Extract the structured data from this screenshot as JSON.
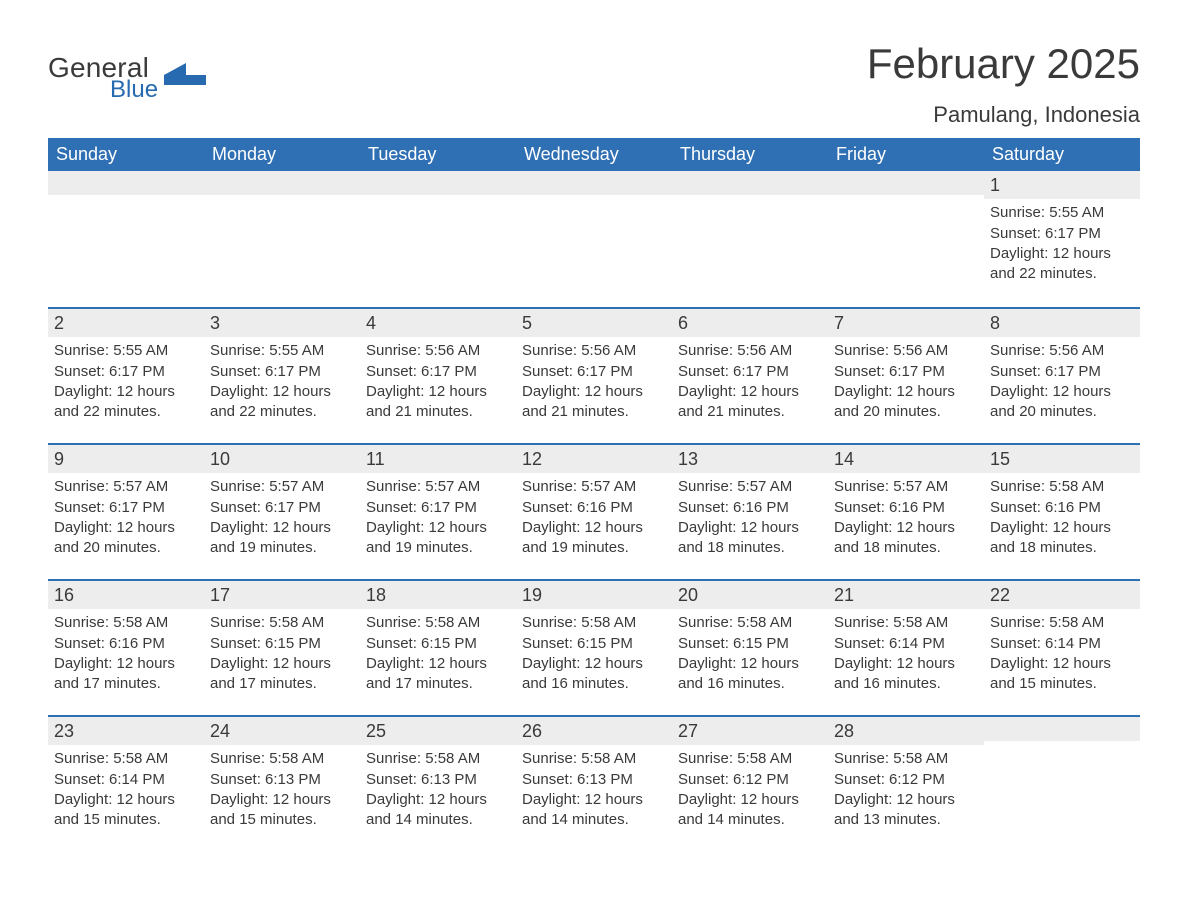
{
  "logo": {
    "text1": "General",
    "text2": "Blue",
    "accent_color": "#276aaf"
  },
  "title": "February 2025",
  "location": "Pamulang, Indonesia",
  "header_bg": "#2f6fb4",
  "header_fg": "#ffffff",
  "daynum_bg": "#ededed",
  "divider_color": "#2f6fb4",
  "text_color": "#3a3a3a",
  "background_color": "#ffffff",
  "fonts": {
    "title_size_pt": 32,
    "location_size_pt": 17,
    "header_size_pt": 14,
    "body_size_pt": 11
  },
  "columns": [
    "Sunday",
    "Monday",
    "Tuesday",
    "Wednesday",
    "Thursday",
    "Friday",
    "Saturday"
  ],
  "weeks": [
    [
      null,
      null,
      null,
      null,
      null,
      null,
      {
        "n": "1",
        "sunrise": "Sunrise: 5:55 AM",
        "sunset": "Sunset: 6:17 PM",
        "daylight": "Daylight: 12 hours and 22 minutes."
      }
    ],
    [
      {
        "n": "2",
        "sunrise": "Sunrise: 5:55 AM",
        "sunset": "Sunset: 6:17 PM",
        "daylight": "Daylight: 12 hours and 22 minutes."
      },
      {
        "n": "3",
        "sunrise": "Sunrise: 5:55 AM",
        "sunset": "Sunset: 6:17 PM",
        "daylight": "Daylight: 12 hours and 22 minutes."
      },
      {
        "n": "4",
        "sunrise": "Sunrise: 5:56 AM",
        "sunset": "Sunset: 6:17 PM",
        "daylight": "Daylight: 12 hours and 21 minutes."
      },
      {
        "n": "5",
        "sunrise": "Sunrise: 5:56 AM",
        "sunset": "Sunset: 6:17 PM",
        "daylight": "Daylight: 12 hours and 21 minutes."
      },
      {
        "n": "6",
        "sunrise": "Sunrise: 5:56 AM",
        "sunset": "Sunset: 6:17 PM",
        "daylight": "Daylight: 12 hours and 21 minutes."
      },
      {
        "n": "7",
        "sunrise": "Sunrise: 5:56 AM",
        "sunset": "Sunset: 6:17 PM",
        "daylight": "Daylight: 12 hours and 20 minutes."
      },
      {
        "n": "8",
        "sunrise": "Sunrise: 5:56 AM",
        "sunset": "Sunset: 6:17 PM",
        "daylight": "Daylight: 12 hours and 20 minutes."
      }
    ],
    [
      {
        "n": "9",
        "sunrise": "Sunrise: 5:57 AM",
        "sunset": "Sunset: 6:17 PM",
        "daylight": "Daylight: 12 hours and 20 minutes."
      },
      {
        "n": "10",
        "sunrise": "Sunrise: 5:57 AM",
        "sunset": "Sunset: 6:17 PM",
        "daylight": "Daylight: 12 hours and 19 minutes."
      },
      {
        "n": "11",
        "sunrise": "Sunrise: 5:57 AM",
        "sunset": "Sunset: 6:17 PM",
        "daylight": "Daylight: 12 hours and 19 minutes."
      },
      {
        "n": "12",
        "sunrise": "Sunrise: 5:57 AM",
        "sunset": "Sunset: 6:16 PM",
        "daylight": "Daylight: 12 hours and 19 minutes."
      },
      {
        "n": "13",
        "sunrise": "Sunrise: 5:57 AM",
        "sunset": "Sunset: 6:16 PM",
        "daylight": "Daylight: 12 hours and 18 minutes."
      },
      {
        "n": "14",
        "sunrise": "Sunrise: 5:57 AM",
        "sunset": "Sunset: 6:16 PM",
        "daylight": "Daylight: 12 hours and 18 minutes."
      },
      {
        "n": "15",
        "sunrise": "Sunrise: 5:58 AM",
        "sunset": "Sunset: 6:16 PM",
        "daylight": "Daylight: 12 hours and 18 minutes."
      }
    ],
    [
      {
        "n": "16",
        "sunrise": "Sunrise: 5:58 AM",
        "sunset": "Sunset: 6:16 PM",
        "daylight": "Daylight: 12 hours and 17 minutes."
      },
      {
        "n": "17",
        "sunrise": "Sunrise: 5:58 AM",
        "sunset": "Sunset: 6:15 PM",
        "daylight": "Daylight: 12 hours and 17 minutes."
      },
      {
        "n": "18",
        "sunrise": "Sunrise: 5:58 AM",
        "sunset": "Sunset: 6:15 PM",
        "daylight": "Daylight: 12 hours and 17 minutes."
      },
      {
        "n": "19",
        "sunrise": "Sunrise: 5:58 AM",
        "sunset": "Sunset: 6:15 PM",
        "daylight": "Daylight: 12 hours and 16 minutes."
      },
      {
        "n": "20",
        "sunrise": "Sunrise: 5:58 AM",
        "sunset": "Sunset: 6:15 PM",
        "daylight": "Daylight: 12 hours and 16 minutes."
      },
      {
        "n": "21",
        "sunrise": "Sunrise: 5:58 AM",
        "sunset": "Sunset: 6:14 PM",
        "daylight": "Daylight: 12 hours and 16 minutes."
      },
      {
        "n": "22",
        "sunrise": "Sunrise: 5:58 AM",
        "sunset": "Sunset: 6:14 PM",
        "daylight": "Daylight: 12 hours and 15 minutes."
      }
    ],
    [
      {
        "n": "23",
        "sunrise": "Sunrise: 5:58 AM",
        "sunset": "Sunset: 6:14 PM",
        "daylight": "Daylight: 12 hours and 15 minutes."
      },
      {
        "n": "24",
        "sunrise": "Sunrise: 5:58 AM",
        "sunset": "Sunset: 6:13 PM",
        "daylight": "Daylight: 12 hours and 15 minutes."
      },
      {
        "n": "25",
        "sunrise": "Sunrise: 5:58 AM",
        "sunset": "Sunset: 6:13 PM",
        "daylight": "Daylight: 12 hours and 14 minutes."
      },
      {
        "n": "26",
        "sunrise": "Sunrise: 5:58 AM",
        "sunset": "Sunset: 6:13 PM",
        "daylight": "Daylight: 12 hours and 14 minutes."
      },
      {
        "n": "27",
        "sunrise": "Sunrise: 5:58 AM",
        "sunset": "Sunset: 6:12 PM",
        "daylight": "Daylight: 12 hours and 14 minutes."
      },
      {
        "n": "28",
        "sunrise": "Sunrise: 5:58 AM",
        "sunset": "Sunset: 6:12 PM",
        "daylight": "Daylight: 12 hours and 13 minutes."
      },
      null
    ]
  ]
}
